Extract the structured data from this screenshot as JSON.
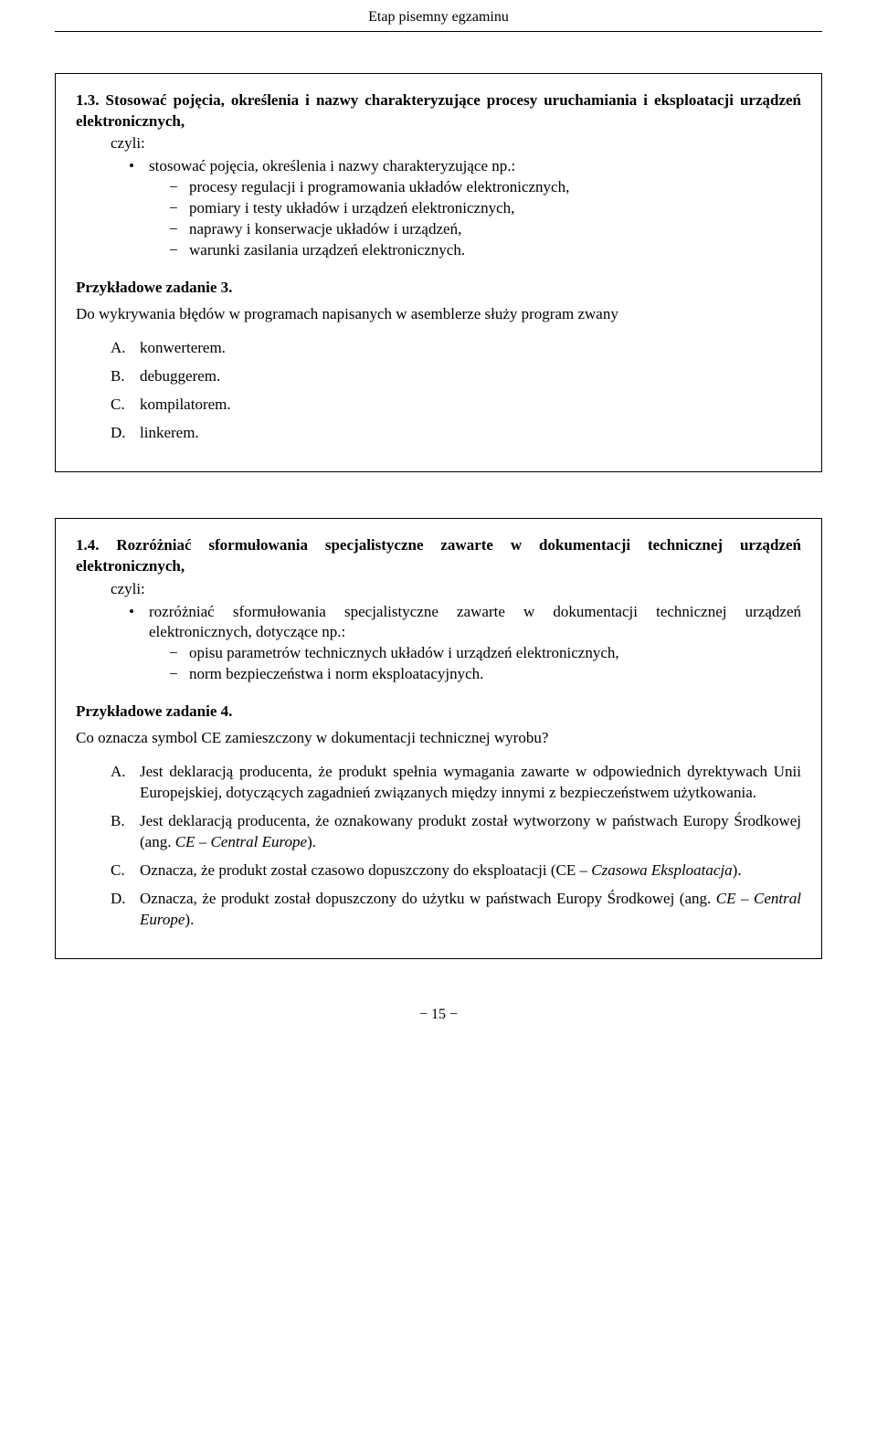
{
  "header": "Etap pisemny egzaminu",
  "box1": {
    "number": "1.3.",
    "title": "Stosować pojęcia, określenia i nazwy charakteryzujące procesy uruchamiania i eksploatacji urządzeń elektronicznych,",
    "czyli": "czyli:",
    "bullet1": "stosować pojęcia, określenia i nazwy charakteryzujące np.:",
    "dashes": [
      "procesy regulacji i programowania układów elektronicznych,",
      "pomiary i testy układów i urządzeń elektronicznych,",
      "naprawy i konserwacje układów i urządzeń,",
      "warunki zasilania urządzeń elektronicznych."
    ],
    "task_heading": "Przykładowe zadanie 3.",
    "question": "Do wykrywania błędów w programach napisanych w asemblerze służy program zwany",
    "options": {
      "A": "konwerterem.",
      "B": "debuggerem.",
      "C": "kompilatorem.",
      "D": "linkerem."
    }
  },
  "box2": {
    "number": "1.4.",
    "title": "Rozróżniać sformułowania specjalistyczne zawarte w dokumentacji technicznej urządzeń elektronicznych,",
    "czyli": "czyli:",
    "bullet1": "rozróżniać sformułowania specjalistyczne zawarte w dokumentacji technicznej urządzeń elektronicznych, dotyczące np.:",
    "dashes": [
      "opisu parametrów technicznych układów i urządzeń elektronicznych,",
      "norm bezpieczeństwa i norm eksploatacyjnych."
    ],
    "task_heading": "Przykładowe zadanie 4.",
    "question": "Co oznacza symbol CE zamieszczony w dokumentacji technicznej wyrobu?",
    "options": {
      "A": "Jest deklaracją producenta, że produkt spełnia wymagania zawarte w odpowiednich dyrektywach Unii Europejskiej, dotyczących zagadnień związanych między innymi z bezpieczeństwem użytkowania.",
      "B_pre": "Jest deklaracją producenta, że oznakowany produkt został wytworzony w państwach Europy Środkowej (ang. ",
      "B_it": "CE – Central Europe",
      "B_post": ").",
      "C_pre": "Oznacza, że produkt został czasowo dopuszczony do eksploatacji (CE – ",
      "C_it": "Czasowa Eksploatacja",
      "C_post": ").",
      "D_pre": "Oznacza, że produkt został dopuszczony do użytku w państwach Europy Środkowej (ang. ",
      "D_it": "CE – Central Europe",
      "D_post": ")."
    }
  },
  "letters": {
    "A": "A.",
    "B": "B.",
    "C": "C.",
    "D": "D."
  },
  "page_number": "− 15 −"
}
